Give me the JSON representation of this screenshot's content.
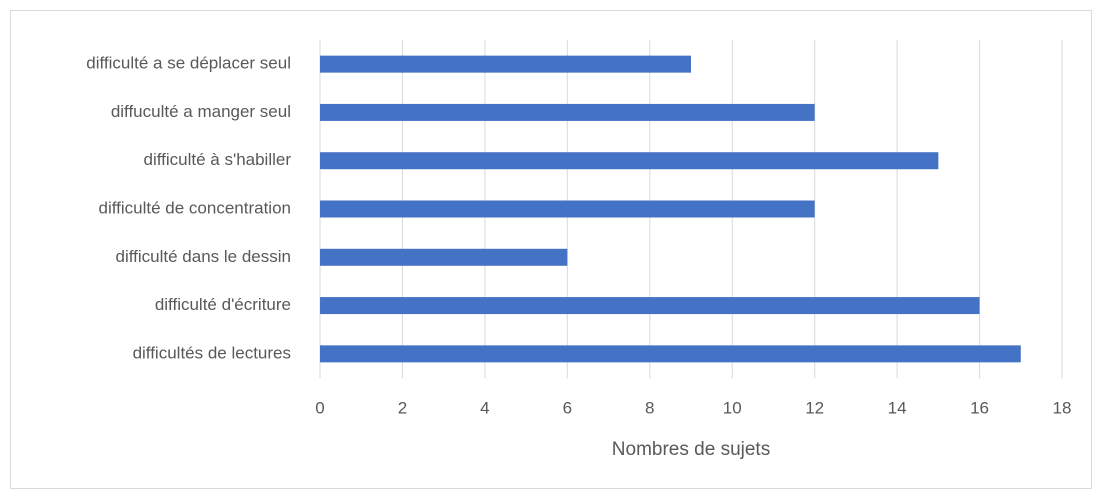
{
  "chart_data": {
    "type": "bar",
    "orientation": "horizontal",
    "categories": [
      "difficulté a se déplacer seul",
      "diffuculté a manger seul",
      "difficulté à s'habiller",
      "difficulté de concentration",
      "difficulté dans le dessin",
      "difficulté d'écriture",
      "difficultés de lectures"
    ],
    "values": [
      9,
      12,
      15,
      12,
      6,
      16,
      17
    ],
    "color": "#4472c4",
    "x_label": "Nombres de sujets",
    "xlim": [
      0,
      18
    ],
    "xticks": [
      0,
      2,
      4,
      6,
      8,
      10,
      12,
      14,
      16,
      18
    ],
    "grid": true
  }
}
